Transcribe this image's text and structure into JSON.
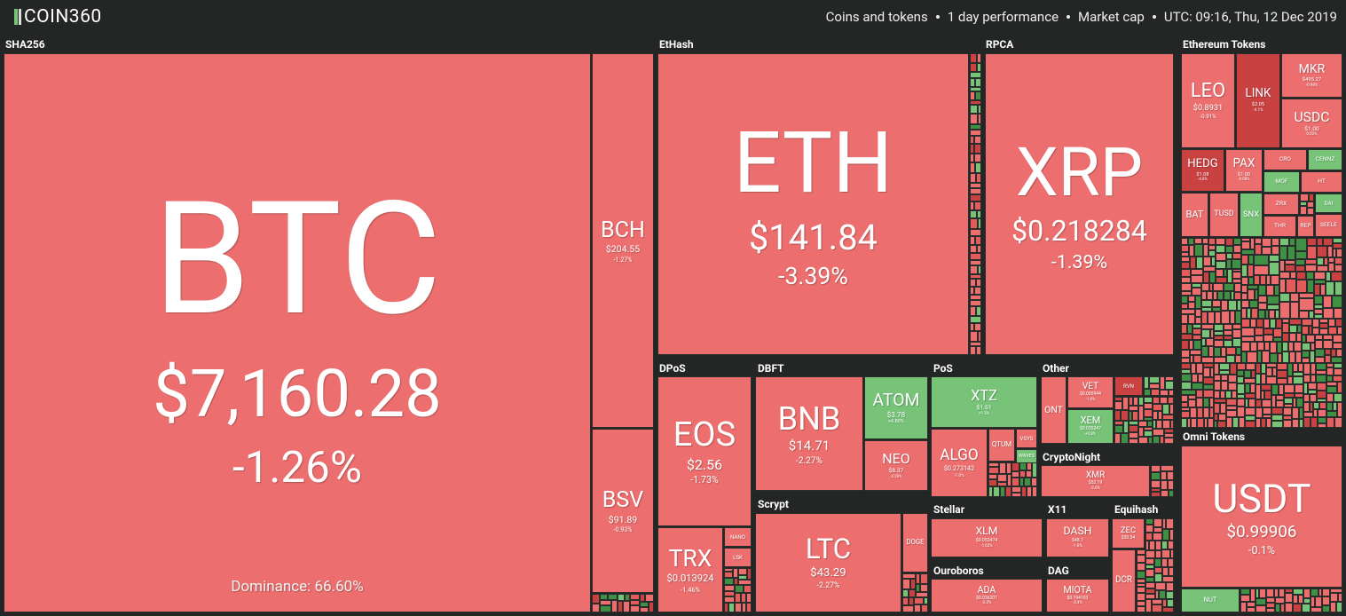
{
  "header": {
    "logo": "COIN360",
    "filters": [
      "Coins and tokens",
      "1 day performance",
      "Market cap",
      "UTC: 09:16, Thu, 12 Dec 2019"
    ]
  },
  "groups": [
    {
      "name": "SHA256",
      "tiles": [
        {
          "symbol": "BTC",
          "price": "$7,160.28",
          "change": "-1.26%",
          "note": "Dominance: 66.60%",
          "color": "#ec6e6e"
        },
        {
          "symbol": "BCH",
          "price": "$204.55",
          "change": "-1.27%",
          "color": "#ec6e6e"
        },
        {
          "symbol": "BSV",
          "price": "$91.89",
          "change": "-0.93%",
          "color": "#ec6e6e"
        }
      ]
    },
    {
      "name": "EtHash",
      "tiles": [
        {
          "symbol": "ETH",
          "price": "$141.84",
          "change": "-3.39%",
          "color": "#ec6e6e"
        }
      ]
    },
    {
      "name": "RPCA",
      "tiles": [
        {
          "symbol": "XRP",
          "price": "$0.218284",
          "change": "-1.39%",
          "color": "#ec6e6e"
        }
      ]
    },
    {
      "name": "Ethereum Tokens",
      "tiles": [
        {
          "symbol": "LEO",
          "price": "$0.8931",
          "change": "-0.91%",
          "color": "#ec6e6e"
        },
        {
          "symbol": "LINK",
          "price": "$2.05",
          "change": "-4.1%",
          "color": "#c94141"
        },
        {
          "symbol": "MKR",
          "price": "$495.27",
          "change": "-0.98%",
          "color": "#ec6e6e"
        },
        {
          "symbol": "USDC",
          "price": "$1.00",
          "change": "0.02%",
          "color": "#ec6e6e"
        },
        {
          "symbol": "HEDG",
          "price": "$1.08",
          "change": "-4.8%",
          "color": "#c94141"
        },
        {
          "symbol": "PAX",
          "price": "$1.00",
          "change": "-0.08%",
          "color": "#ec6e6e"
        },
        {
          "symbol": "CRO",
          "color": "#ec6e6e"
        },
        {
          "symbol": "CENNZ",
          "color": "#77c479"
        },
        {
          "symbol": "MOF",
          "color": "#77c479"
        },
        {
          "symbol": "HT",
          "color": "#ec6e6e"
        },
        {
          "symbol": "BAT",
          "color": "#ec6e6e"
        },
        {
          "symbol": "TUSD",
          "color": "#ec6e6e"
        },
        {
          "symbol": "SNX",
          "color": "#77c479"
        },
        {
          "symbol": "ZRX",
          "color": "#ec6e6e"
        },
        {
          "symbol": "DAI",
          "color": "#77c479"
        },
        {
          "symbol": "THR",
          "color": "#ec6e6e"
        },
        {
          "symbol": "REP",
          "color": "#ec6e6e"
        },
        {
          "symbol": "SEELE",
          "color": "#ec6e6e"
        }
      ]
    },
    {
      "name": "DPoS",
      "tiles": [
        {
          "symbol": "EOS",
          "price": "$2.56",
          "change": "-1.73%",
          "color": "#ec6e6e"
        },
        {
          "symbol": "TRX",
          "price": "$0.013924",
          "change": "-1.46%",
          "color": "#ec6e6e"
        },
        {
          "symbol": "NANO",
          "color": "#ec6e6e"
        },
        {
          "symbol": "LSK",
          "color": "#ec6e6e"
        }
      ]
    },
    {
      "name": "DBFT",
      "tiles": [
        {
          "symbol": "BNB",
          "price": "$14.71",
          "change": "-2.27%",
          "color": "#ec6e6e"
        },
        {
          "symbol": "ATOM",
          "price": "$3.78",
          "change": "+6.80%",
          "color": "#77c479"
        },
        {
          "symbol": "NEO",
          "price": "$8.37",
          "change": "-2.29%",
          "color": "#ec6e6e"
        }
      ]
    },
    {
      "name": "Scrypt",
      "tiles": [
        {
          "symbol": "LTC",
          "price": "$43.29",
          "change": "-2.27%",
          "color": "#ec6e6e"
        },
        {
          "symbol": "DOGE",
          "color": "#ec6e6e"
        }
      ]
    },
    {
      "name": "PoS",
      "tiles": [
        {
          "symbol": "XTZ",
          "price": "$1.51",
          "change": "+1.2%",
          "color": "#77c479"
        },
        {
          "symbol": "ALGO",
          "price": "$0.273142",
          "change": "-1.0%",
          "color": "#ec6e6e"
        },
        {
          "symbol": "QTUM",
          "color": "#ec6e6e"
        },
        {
          "symbol": "VSYS",
          "color": "#ec6e6e"
        },
        {
          "symbol": "WAVES",
          "color": "#77c479"
        }
      ]
    },
    {
      "name": "Other",
      "tiles": [
        {
          "symbol": "ONT",
          "color": "#ec6e6e"
        },
        {
          "symbol": "VET",
          "price": "$0.005944",
          "change": "-1.6%",
          "color": "#ec6e6e"
        },
        {
          "symbol": "XEM",
          "price": "$0.035247",
          "change": "+0.8%",
          "color": "#77c479"
        },
        {
          "symbol": "RVN",
          "color": "#c94141"
        }
      ]
    },
    {
      "name": "CryptoNight",
      "tiles": [
        {
          "symbol": "XMR",
          "price": "$52.19",
          "change": "-2.0%",
          "color": "#ec6e6e"
        }
      ]
    },
    {
      "name": "Stellar",
      "tiles": [
        {
          "symbol": "XLM",
          "price": "$0.052474",
          "change": "-1.62%",
          "color": "#ec6e6e"
        }
      ]
    },
    {
      "name": "X11",
      "tiles": [
        {
          "symbol": "DASH",
          "price": "$48.7",
          "change": "-1.8%",
          "color": "#ec6e6e"
        }
      ]
    },
    {
      "name": "Equihash",
      "tiles": [
        {
          "symbol": "ZEC",
          "price": "$30.54",
          "color": "#ec6e6e"
        },
        {
          "symbol": "DCR",
          "color": "#ec6e6e"
        }
      ]
    },
    {
      "name": "Ouroboros",
      "tiles": [
        {
          "symbol": "ADA",
          "price": "$0.036207",
          "change": "-2.2%",
          "color": "#ec6e6e"
        }
      ]
    },
    {
      "name": "DAG",
      "tiles": [
        {
          "symbol": "MIOTA",
          "price": "$0.194103",
          "change": "-2.4%",
          "color": "#ec6e6e"
        }
      ]
    },
    {
      "name": "Omni Tokens",
      "tiles": [
        {
          "symbol": "USDT",
          "price": "$0.99906",
          "change": "-0.1%",
          "color": "#ec6e6e"
        },
        {
          "symbol": "NUT",
          "color": "#77c479"
        }
      ]
    }
  ]
}
